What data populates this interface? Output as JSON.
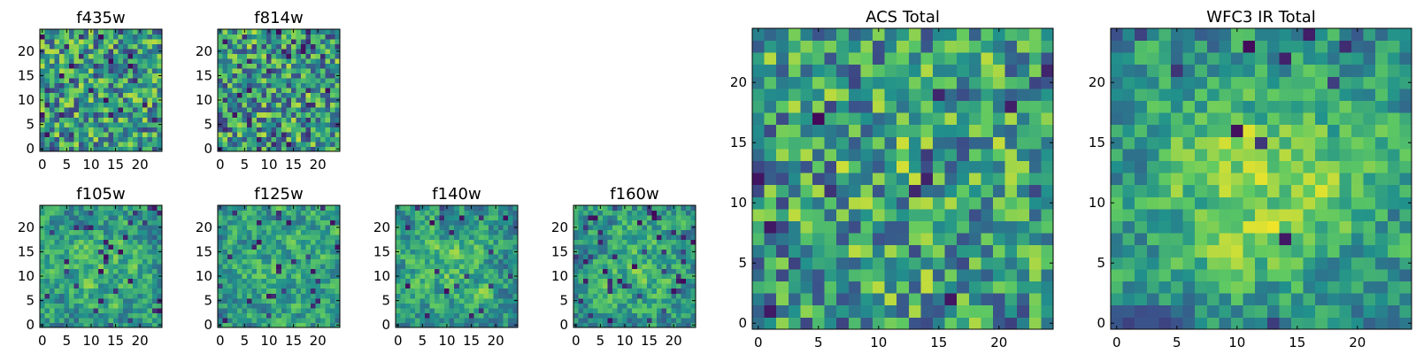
{
  "colormap": {
    "name": "viridis",
    "stops": [
      "#440154",
      "#3b528b",
      "#21918c",
      "#5ec962",
      "#fde725"
    ]
  },
  "chart_data": [
    {
      "type": "heatmap",
      "title": "f435w",
      "size": 25,
      "xticks": [
        "0",
        "5",
        "10",
        "15",
        "20"
      ],
      "yticks": [
        "0",
        "5",
        "10",
        "15",
        "20"
      ],
      "xlim": [
        -0.5,
        24.5
      ],
      "ylim": [
        -0.5,
        24.5
      ],
      "colormap": "viridis",
      "seed": 11,
      "smooth": 0,
      "dark_fraction": 0.06,
      "center_peak": 0
    },
    {
      "type": "heatmap",
      "title": "f814w",
      "size": 25,
      "xticks": [
        "0",
        "5",
        "10",
        "15",
        "20"
      ],
      "yticks": [
        "0",
        "5",
        "10",
        "15",
        "20"
      ],
      "xlim": [
        -0.5,
        24.5
      ],
      "ylim": [
        -0.5,
        24.5
      ],
      "colormap": "viridis",
      "seed": 23,
      "smooth": 0,
      "dark_fraction": 0.07,
      "center_peak": 0
    },
    {
      "type": "heatmap",
      "title": "f105w",
      "size": 25,
      "xticks": [
        "0",
        "5",
        "10",
        "15",
        "20"
      ],
      "yticks": [
        "0",
        "5",
        "10",
        "15",
        "20"
      ],
      "xlim": [
        -0.5,
        24.5
      ],
      "ylim": [
        -0.5,
        24.5
      ],
      "colormap": "viridis",
      "seed": 37,
      "smooth": 1,
      "dark_fraction": 0.05,
      "center_peak": 0.15
    },
    {
      "type": "heatmap",
      "title": "f125w",
      "size": 25,
      "xticks": [
        "0",
        "5",
        "10",
        "15",
        "20"
      ],
      "yticks": [
        "0",
        "5",
        "10",
        "15",
        "20"
      ],
      "xlim": [
        -0.5,
        24.5
      ],
      "ylim": [
        -0.5,
        24.5
      ],
      "colormap": "viridis",
      "seed": 41,
      "smooth": 1,
      "dark_fraction": 0.05,
      "center_peak": 0.12
    },
    {
      "type": "heatmap",
      "title": "f140w",
      "size": 25,
      "xticks": [
        "0",
        "5",
        "10",
        "15",
        "20"
      ],
      "yticks": [
        "0",
        "5",
        "10",
        "15",
        "20"
      ],
      "xlim": [
        -0.5,
        24.5
      ],
      "ylim": [
        -0.5,
        24.5
      ],
      "colormap": "viridis",
      "seed": 53,
      "smooth": 1,
      "dark_fraction": 0.04,
      "center_peak": 0.15
    },
    {
      "type": "heatmap",
      "title": "f160w",
      "size": 25,
      "xticks": [
        "0",
        "5",
        "10",
        "15",
        "20"
      ],
      "yticks": [
        "0",
        "5",
        "10",
        "15",
        "20"
      ],
      "xlim": [
        -0.5,
        24.5
      ],
      "ylim": [
        -0.5,
        24.5
      ],
      "colormap": "viridis",
      "seed": 67,
      "smooth": 1,
      "dark_fraction": 0.05,
      "center_peak": 0.15
    },
    {
      "type": "heatmap",
      "title": "ACS Total",
      "size": 25,
      "xticks": [
        "0",
        "5",
        "10",
        "15",
        "20"
      ],
      "yticks": [
        "0",
        "5",
        "10",
        "15",
        "20"
      ],
      "xlim": [
        -0.5,
        24.5
      ],
      "ylim": [
        -0.5,
        24.5
      ],
      "colormap": "viridis",
      "seed": 79,
      "smooth": 0,
      "dark_fraction": 0.035,
      "center_peak": 0.05
    },
    {
      "type": "heatmap",
      "title": "WFC3 IR Total",
      "size": 25,
      "xticks": [
        "0",
        "5",
        "10",
        "15",
        "20"
      ],
      "yticks": [
        "0",
        "5",
        "10",
        "15",
        "20"
      ],
      "xlim": [
        -0.5,
        24.5
      ],
      "ylim": [
        -0.5,
        24.5
      ],
      "colormap": "viridis",
      "seed": 97,
      "smooth": 1,
      "dark_fraction": 0.025,
      "center_peak": 0.35
    }
  ]
}
